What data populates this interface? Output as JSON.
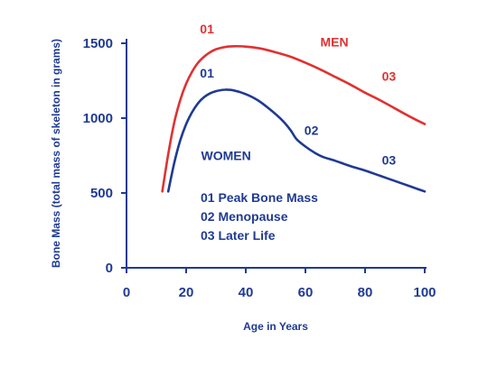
{
  "chart_data": {
    "type": "line",
    "xlabel": "Age in Years",
    "ylabel": "Bone Mass (total mass of skeleton in grams)",
    "xlim": [
      0,
      100
    ],
    "ylim": [
      0,
      1500
    ],
    "xticks": [
      0,
      20,
      40,
      60,
      80,
      100
    ],
    "yticks": [
      0,
      500,
      1000,
      1500
    ],
    "grid": false,
    "colors": {
      "axis": "#1f3a93",
      "men": "#e03131",
      "women": "#1f3a93"
    },
    "series": [
      {
        "name": "MEN",
        "color": "#e03131",
        "x": [
          12,
          14,
          16,
          18,
          20,
          22,
          24,
          26,
          28,
          30,
          33,
          36,
          40,
          45,
          50,
          55,
          60,
          65,
          70,
          75,
          80,
          85,
          90,
          95,
          100
        ],
        "y": [
          510,
          760,
          970,
          1120,
          1230,
          1310,
          1370,
          1410,
          1440,
          1460,
          1475,
          1480,
          1478,
          1465,
          1440,
          1410,
          1370,
          1325,
          1275,
          1225,
          1170,
          1120,
          1065,
          1010,
          960
        ],
        "point_labels": [
          {
            "text": "01",
            "x": 27,
            "y": 1565
          },
          {
            "text": "03",
            "x": 88,
            "y": 1250
          }
        ],
        "name_label": {
          "x": 65,
          "y": 1480
        }
      },
      {
        "name": "WOMEN",
        "color": "#1f3a93",
        "x": [
          14,
          16,
          18,
          20,
          22,
          24,
          26,
          28,
          30,
          33,
          36,
          40,
          44,
          48,
          52,
          55,
          57,
          60,
          63,
          66,
          70,
          75,
          80,
          85,
          90,
          95,
          100
        ],
        "y": [
          510,
          700,
          850,
          960,
          1040,
          1100,
          1140,
          1165,
          1180,
          1190,
          1185,
          1160,
          1120,
          1060,
          990,
          920,
          860,
          810,
          770,
          740,
          715,
          680,
          650,
          615,
          580,
          545,
          510
        ],
        "point_labels": [
          {
            "text": "01",
            "x": 27,
            "y": 1270
          },
          {
            "text": "02",
            "x": 62,
            "y": 890
          },
          {
            "text": "03",
            "x": 88,
            "y": 690
          }
        ],
        "name_label": {
          "x": 25,
          "y": 720
        }
      }
    ],
    "annotations": [
      "01 Peak Bone Mass",
      "02 Menopause",
      "03 Later Life"
    ]
  }
}
